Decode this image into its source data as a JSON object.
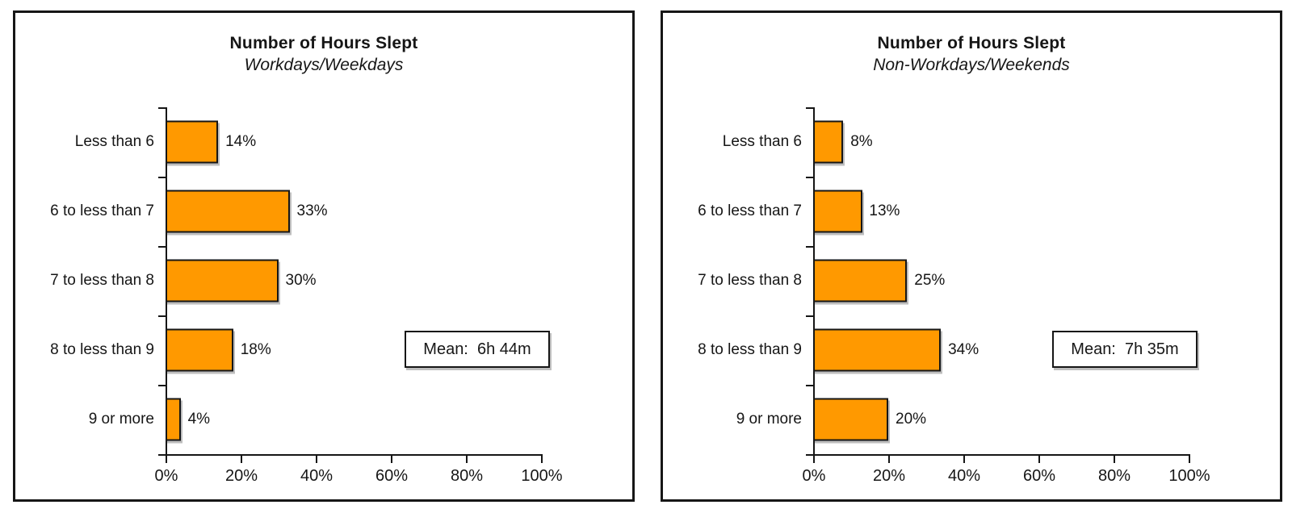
{
  "chart_data": [
    {
      "type": "bar",
      "orientation": "horizontal",
      "title": "Number of Hours Slept",
      "subtitle": "Workdays/Weekdays",
      "categories": [
        "Less than 6",
        "6 to less than 7",
        "7 to less than 8",
        "8 to less than 9",
        "9 or more"
      ],
      "values": [
        14,
        33,
        30,
        18,
        4
      ],
      "value_labels": [
        "14%",
        "33%",
        "30%",
        "18%",
        "4%"
      ],
      "annotation": "Mean:  6h 44m",
      "xlim": [
        0,
        100
      ],
      "x_tick_labels": [
        "0%",
        "20%",
        "40%",
        "60%",
        "80%",
        "100%"
      ],
      "bar_color": "#FF9900",
      "bar_border_color": "#161616",
      "grid": false,
      "legend": false
    },
    {
      "type": "bar",
      "orientation": "horizontal",
      "title": "Number of Hours Slept",
      "subtitle": "Non-Workdays/Weekends",
      "categories": [
        "Less than 6",
        "6 to less than 7",
        "7 to less than 8",
        "8 to less than 9",
        "9 or more"
      ],
      "values": [
        8,
        13,
        25,
        34,
        20
      ],
      "value_labels": [
        "8%",
        "13%",
        "25%",
        "34%",
        "20%"
      ],
      "annotation": "Mean:  7h 35m",
      "xlim": [
        0,
        100
      ],
      "x_tick_labels": [
        "0%",
        "20%",
        "40%",
        "60%",
        "80%",
        "100%"
      ],
      "bar_color": "#FF9900",
      "bar_border_color": "#161616",
      "grid": false,
      "legend": false
    }
  ]
}
